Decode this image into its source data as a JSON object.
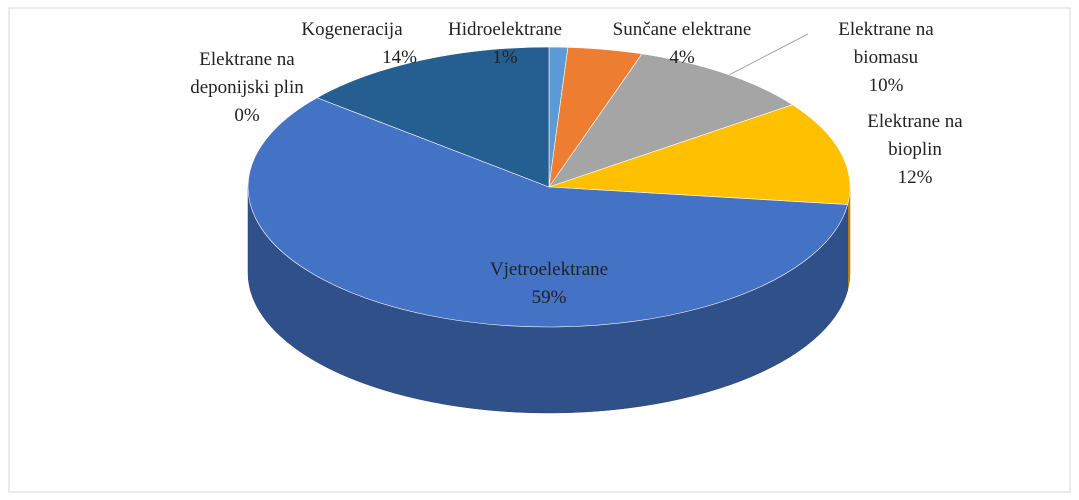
{
  "chart_data": {
    "type": "pie",
    "categories": [
      "Hidroelektrane",
      "Sunčane elektrane",
      "Elektrane na biomasu",
      "Elektrane na bioplin",
      "Vjetroelektrane",
      "Elektrane na deponijski plin",
      "Kogeneracija"
    ],
    "values": [
      1,
      4,
      10,
      12,
      59,
      0,
      14
    ],
    "value_labels": [
      "1%",
      "4%",
      "10%",
      "12%",
      "59%",
      "0%",
      "14%"
    ],
    "colors": [
      "#5b9bd5",
      "#ed7d31",
      "#a5a5a5",
      "#ffc000",
      "#4472c4",
      "#70ad47",
      "#255e91"
    ]
  }
}
